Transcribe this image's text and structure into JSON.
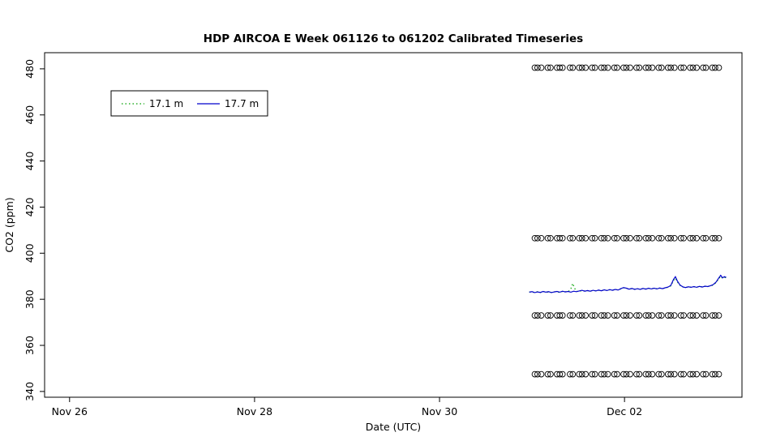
{
  "chart_data": {
    "type": "line",
    "title": "HDP AIRCOA E  Week 061126 to 061202  Calibrated Timeseries",
    "xlabel": "Date (UTC)",
    "ylabel": "CO2 (ppm)",
    "x_unit": "days since 2006-11-26 00:00 UTC",
    "xlim": [
      -0.27,
      7.27
    ],
    "ylim": [
      337.5,
      487.0
    ],
    "grid": false,
    "x_ticks": [
      {
        "value": 0,
        "label": "Nov 26"
      },
      {
        "value": 2,
        "label": "Nov 28"
      },
      {
        "value": 4,
        "label": "Nov 30"
      },
      {
        "value": 6,
        "label": "Dec 02"
      }
    ],
    "y_ticks": [
      340,
      360,
      380,
      400,
      420,
      440,
      460,
      480
    ],
    "legend": {
      "position": "top-left-inset",
      "entries": [
        {
          "label": "17.1 m",
          "color": "#00a000",
          "style": "dotted"
        },
        {
          "label": "17.7 m",
          "color": "#0000cc",
          "style": "solid"
        }
      ]
    },
    "series": [
      {
        "name": "17.1 m",
        "color": "#00a000",
        "dash": "1.5 3",
        "points": [
          [
            4.97,
            383.2
          ],
          [
            5.0,
            383.1
          ],
          [
            5.03,
            383.0
          ],
          [
            5.06,
            383.3
          ],
          [
            5.09,
            382.9
          ],
          [
            5.12,
            383.3
          ],
          [
            5.15,
            383.2
          ],
          [
            5.18,
            383.1
          ],
          [
            5.21,
            383.0
          ],
          [
            5.24,
            383.3
          ],
          [
            5.27,
            383.2
          ],
          [
            5.3,
            383.0
          ],
          [
            5.33,
            383.4
          ],
          [
            5.36,
            383.3
          ],
          [
            5.39,
            383.2
          ],
          [
            5.42,
            384.6
          ],
          [
            5.44,
            386.9
          ],
          [
            5.46,
            384.8
          ],
          [
            5.48,
            383.4
          ],
          [
            5.51,
            383.5
          ],
          [
            5.54,
            383.7
          ],
          [
            5.57,
            383.6
          ],
          [
            5.6,
            383.7
          ],
          [
            5.63,
            383.6
          ],
          [
            5.66,
            383.8
          ],
          [
            5.69,
            383.7
          ],
          [
            5.72,
            383.9
          ],
          [
            5.75,
            383.8
          ],
          [
            5.78,
            384.0
          ],
          [
            5.81,
            383.9
          ],
          [
            5.84,
            384.1
          ],
          [
            5.87,
            384.0
          ],
          [
            5.9,
            384.2
          ],
          [
            5.93,
            384.1
          ],
          [
            5.96,
            384.5
          ],
          [
            5.99,
            385.0
          ],
          [
            6.02,
            384.7
          ],
          [
            6.05,
            384.5
          ],
          [
            6.08,
            384.6
          ],
          [
            6.11,
            384.4
          ],
          [
            6.14,
            384.5
          ],
          [
            6.17,
            384.4
          ],
          [
            6.2,
            384.6
          ],
          [
            6.23,
            384.5
          ],
          [
            6.26,
            384.7
          ],
          [
            6.29,
            384.6
          ],
          [
            6.32,
            384.7
          ],
          [
            6.35,
            384.6
          ],
          [
            6.38,
            384.8
          ],
          [
            6.41,
            384.7
          ],
          [
            6.44,
            384.9
          ],
          [
            6.47,
            385.2
          ],
          [
            6.5,
            385.8
          ],
          [
            6.53,
            388.2
          ],
          [
            6.55,
            389.2
          ],
          [
            6.57,
            387.6
          ],
          [
            6.6,
            386.0
          ],
          [
            6.63,
            385.3
          ],
          [
            6.66,
            385.2
          ],
          [
            6.69,
            385.3
          ],
          [
            6.72,
            385.3
          ],
          [
            6.75,
            385.4
          ],
          [
            6.78,
            385.3
          ],
          [
            6.81,
            385.5
          ],
          [
            6.84,
            385.4
          ],
          [
            6.87,
            385.6
          ],
          [
            6.9,
            385.6
          ],
          [
            6.93,
            385.8
          ],
          [
            6.96,
            386.2
          ],
          [
            6.99,
            387.2
          ],
          [
            7.02,
            389.0
          ],
          [
            7.04,
            390.0
          ],
          [
            7.06,
            389.1
          ],
          [
            7.08,
            389.5
          ],
          [
            7.1,
            389.3
          ]
        ]
      },
      {
        "name": "17.7 m",
        "color": "#0000cc",
        "dash": null,
        "points": [
          [
            4.97,
            383.1
          ],
          [
            5.0,
            383.3
          ],
          [
            5.03,
            382.9
          ],
          [
            5.06,
            383.2
          ],
          [
            5.09,
            383.0
          ],
          [
            5.12,
            383.4
          ],
          [
            5.15,
            383.1
          ],
          [
            5.18,
            383.3
          ],
          [
            5.21,
            382.9
          ],
          [
            5.24,
            383.2
          ],
          [
            5.27,
            383.4
          ],
          [
            5.3,
            383.1
          ],
          [
            5.33,
            383.5
          ],
          [
            5.36,
            383.2
          ],
          [
            5.39,
            383.4
          ],
          [
            5.42,
            383.1
          ],
          [
            5.45,
            383.5
          ],
          [
            5.48,
            383.3
          ],
          [
            5.51,
            383.6
          ],
          [
            5.54,
            383.9
          ],
          [
            5.57,
            383.5
          ],
          [
            5.6,
            383.8
          ],
          [
            5.63,
            383.5
          ],
          [
            5.66,
            383.9
          ],
          [
            5.69,
            383.6
          ],
          [
            5.72,
            384.0
          ],
          [
            5.75,
            383.7
          ],
          [
            5.78,
            384.1
          ],
          [
            5.81,
            383.8
          ],
          [
            5.84,
            384.2
          ],
          [
            5.87,
            383.9
          ],
          [
            5.9,
            384.3
          ],
          [
            5.93,
            384.0
          ],
          [
            5.96,
            384.6
          ],
          [
            5.99,
            385.1
          ],
          [
            6.02,
            384.8
          ],
          [
            6.05,
            384.4
          ],
          [
            6.08,
            384.7
          ],
          [
            6.11,
            384.3
          ],
          [
            6.14,
            384.6
          ],
          [
            6.17,
            384.3
          ],
          [
            6.2,
            384.7
          ],
          [
            6.23,
            384.4
          ],
          [
            6.26,
            384.8
          ],
          [
            6.29,
            384.5
          ],
          [
            6.32,
            384.8
          ],
          [
            6.35,
            384.5
          ],
          [
            6.38,
            384.9
          ],
          [
            6.41,
            384.6
          ],
          [
            6.44,
            385.0
          ],
          [
            6.47,
            385.3
          ],
          [
            6.5,
            386.0
          ],
          [
            6.53,
            388.6
          ],
          [
            6.55,
            389.8
          ],
          [
            6.57,
            388.0
          ],
          [
            6.6,
            386.2
          ],
          [
            6.63,
            385.4
          ],
          [
            6.66,
            385.1
          ],
          [
            6.69,
            385.4
          ],
          [
            6.72,
            385.2
          ],
          [
            6.75,
            385.5
          ],
          [
            6.78,
            385.2
          ],
          [
            6.81,
            385.6
          ],
          [
            6.84,
            385.3
          ],
          [
            6.87,
            385.7
          ],
          [
            6.9,
            385.5
          ],
          [
            6.93,
            385.9
          ],
          [
            6.96,
            386.4
          ],
          [
            6.99,
            387.5
          ],
          [
            7.02,
            389.3
          ],
          [
            7.04,
            390.4
          ],
          [
            7.06,
            389.3
          ],
          [
            7.08,
            389.8
          ],
          [
            7.1,
            389.5
          ]
        ]
      }
    ],
    "calibration_markers": {
      "marker": "open-circle",
      "levels_ppm": [
        480.5,
        406.5,
        373.0,
        347.5
      ],
      "x_events": [
        5.03,
        5.06,
        5.1,
        5.17,
        5.2,
        5.27,
        5.3,
        5.33,
        5.41,
        5.44,
        5.51,
        5.54,
        5.58,
        5.65,
        5.68,
        5.75,
        5.78,
        5.82,
        5.89,
        5.92,
        5.99,
        6.02,
        6.06,
        6.13,
        6.16,
        6.23,
        6.26,
        6.3,
        6.37,
        6.4,
        6.47,
        6.5,
        6.54,
        6.61,
        6.64,
        6.71,
        6.74,
        6.78,
        6.85,
        6.88,
        6.95,
        6.98,
        7.02
      ]
    }
  }
}
